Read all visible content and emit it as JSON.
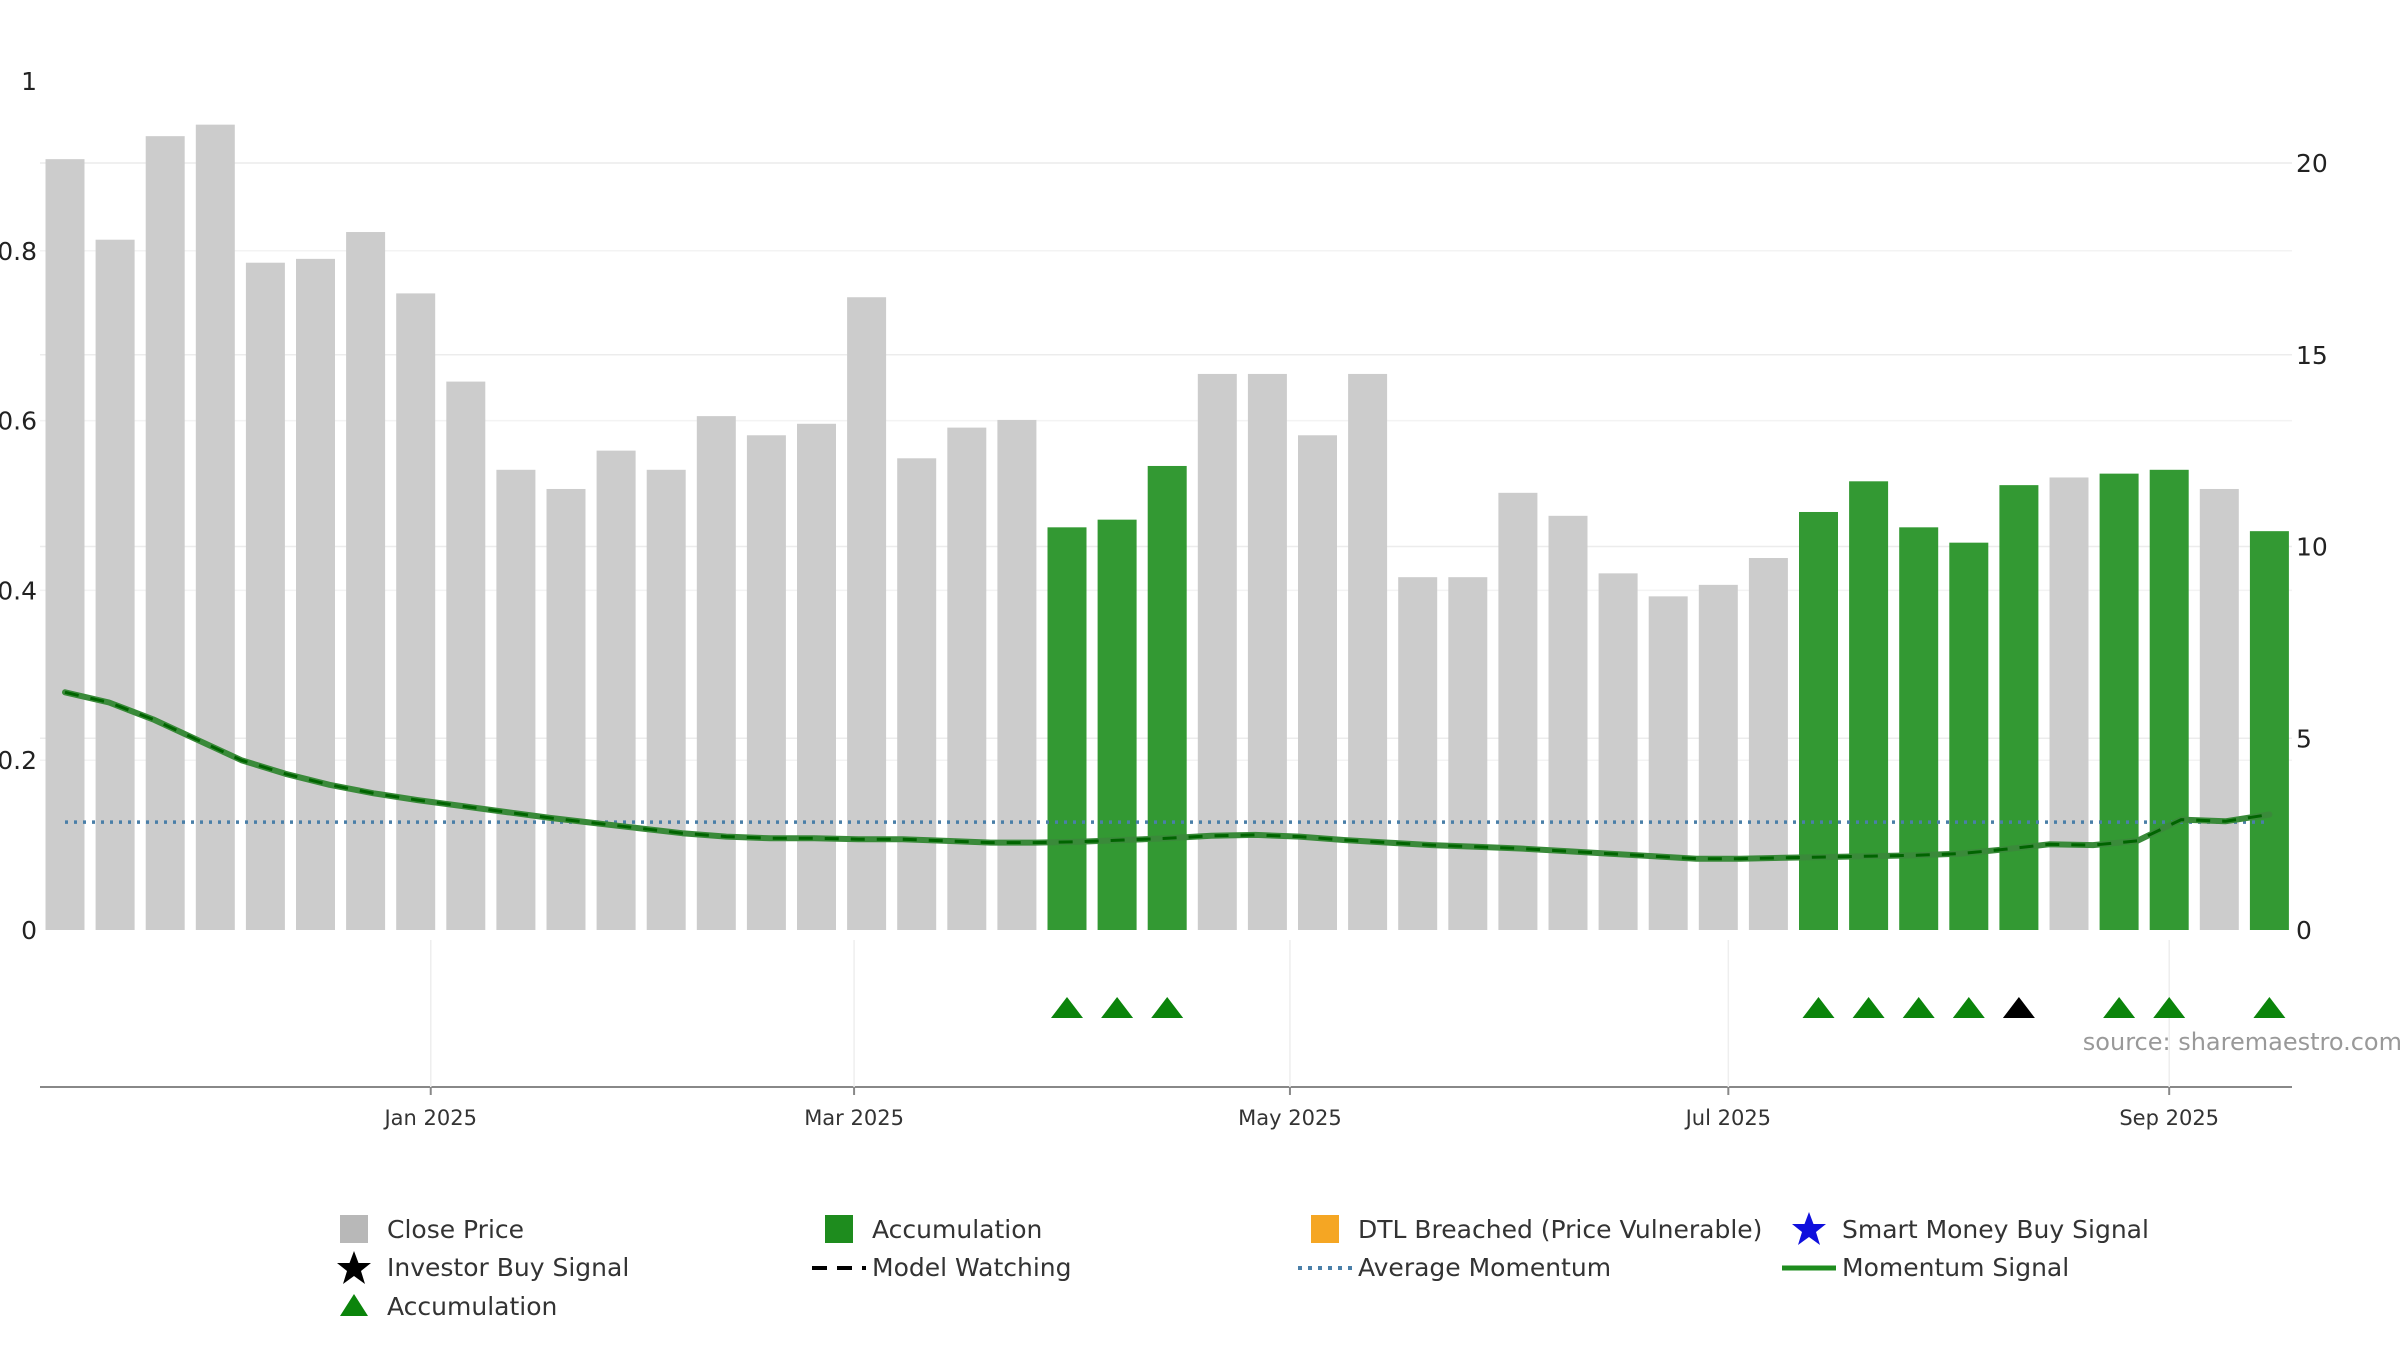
{
  "chart_data": {
    "type": "bar",
    "source_text": "source: sharemaestro.com",
    "left_axis": {
      "ylim": [
        0,
        1
      ],
      "ticks": [
        "0",
        "0.2",
        "0.4",
        "0.6",
        "0.8",
        "1"
      ]
    },
    "right_axis": {
      "ylim": [
        0,
        20
      ],
      "ticks": [
        "0",
        "5",
        "10",
        "15",
        "20"
      ]
    },
    "x_ticks": [
      {
        "label": "Jan 2025",
        "index": 7.3
      },
      {
        "label": "Mar 2025",
        "index": 15.75
      },
      {
        "label": "May 2025",
        "index": 24.45
      },
      {
        "label": "Jul 2025",
        "index": 33.2
      },
      {
        "label": "Sep 2025",
        "index": 42.0
      }
    ],
    "close_price": [
      20.1,
      18.0,
      20.7,
      21.0,
      17.4,
      17.5,
      18.2,
      16.6,
      14.3,
      12.0,
      11.5,
      12.5,
      12.0,
      13.4,
      12.9,
      13.2,
      16.5,
      12.3,
      13.1,
      13.3,
      10.5,
      10.7,
      12.1,
      14.5,
      14.5,
      12.9,
      14.5,
      9.2,
      9.2,
      11.4,
      10.8,
      9.3,
      8.7,
      9.0,
      9.7,
      10.9,
      11.7,
      10.5,
      10.1,
      11.6,
      11.8,
      11.9,
      12.0,
      11.5,
      10.4
    ],
    "accumulation_flags": [
      0,
      0,
      0,
      0,
      0,
      0,
      0,
      0,
      0,
      0,
      0,
      0,
      0,
      0,
      0,
      0,
      0,
      0,
      0,
      0,
      1,
      1,
      1,
      0,
      0,
      0,
      0,
      0,
      0,
      0,
      0,
      0,
      0,
      0,
      0,
      1,
      1,
      1,
      1,
      1,
      0,
      1,
      1,
      0,
      1
    ],
    "momentum_signal": [
      0.28,
      0.268,
      0.248,
      0.224,
      0.2,
      0.184,
      0.171,
      0.161,
      0.153,
      0.146,
      0.139,
      0.132,
      0.126,
      0.12,
      0.114,
      0.11,
      0.108,
      0.108,
      0.107,
      0.107,
      0.105,
      0.103,
      0.103,
      0.104,
      0.106,
      0.108,
      0.111,
      0.112,
      0.11,
      0.106,
      0.103,
      0.1,
      0.098,
      0.096,
      0.093,
      0.09,
      0.087,
      0.084,
      0.084,
      0.085,
      0.086,
      0.087,
      0.088,
      0.09,
      0.095,
      0.101,
      0.1,
      0.105,
      0.13,
      0.128,
      0.136
    ],
    "average_momentum": 0.127,
    "markers": [
      {
        "index": 20,
        "type": "accumulation"
      },
      {
        "index": 21,
        "type": "accumulation"
      },
      {
        "index": 22,
        "type": "accumulation"
      },
      {
        "index": 35,
        "type": "accumulation"
      },
      {
        "index": 36,
        "type": "accumulation"
      },
      {
        "index": 37,
        "type": "accumulation"
      },
      {
        "index": 38,
        "type": "accumulation"
      },
      {
        "index": 39,
        "type": "investor_buy"
      },
      {
        "index": 41,
        "type": "accumulation"
      },
      {
        "index": 42,
        "type": "accumulation"
      },
      {
        "index": 44,
        "type": "accumulation"
      }
    ],
    "colors": {
      "close_price": "#cccccc",
      "accumulation_bar": "#339933",
      "momentum_line": "#3a8a3a",
      "momentum_dash": "#006400",
      "average_momentum": "#4a7fa8",
      "accumulation_marker": "#0b840b",
      "investor_marker": "#000000",
      "dtl": "#f5a623",
      "smart_money": "#1010dd"
    },
    "legend": [
      {
        "key": "close_price",
        "label": "Close Price",
        "icon": "square-grey"
      },
      {
        "key": "accumulation_bar",
        "label": "Accumulation",
        "icon": "square-green"
      },
      {
        "key": "dtl",
        "label": "DTL Breached (Price Vulnerable)",
        "icon": "square-orange"
      },
      {
        "key": "smart_money",
        "label": "Smart Money Buy Signal",
        "icon": "star-blue"
      },
      {
        "key": "investor_buy",
        "label": "Investor Buy Signal",
        "icon": "star-black"
      },
      {
        "key": "model_watching",
        "label": "Model Watching",
        "icon": "dash-black"
      },
      {
        "key": "average_momentum",
        "label": "Average Momentum",
        "icon": "dotted-blue"
      },
      {
        "key": "momentum_signal",
        "label": "Momentum Signal",
        "icon": "line-green"
      },
      {
        "key": "accumulation_marker",
        "label": "Accumulation",
        "icon": "triangle-green"
      }
    ]
  }
}
